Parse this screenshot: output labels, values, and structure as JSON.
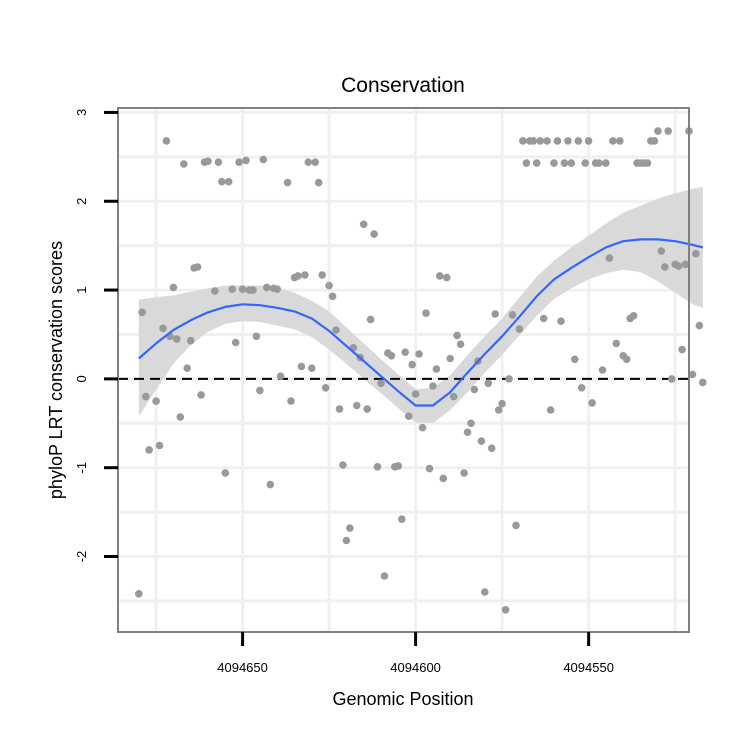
{
  "chart_data": {
    "type": "scatter",
    "title": "Conservation",
    "xlabel": "Genomic Position",
    "ylabel": "phyloP LRT conservation scores",
    "x_reversed": true,
    "xlim": [
      4094686,
      4094521
    ],
    "ylim": [
      -2.85,
      3.05
    ],
    "x_ticks": [
      4094650,
      4094600,
      4094550
    ],
    "x_tick_labels": [
      "4094650",
      "4094600",
      "4094550"
    ],
    "y_ticks": [
      -2,
      -1,
      0,
      1,
      2,
      3
    ],
    "y_tick_labels": [
      "-2",
      "-1",
      "0",
      "1",
      "2",
      "3"
    ],
    "grid": true,
    "legend": "none",
    "reference_line": {
      "y": 0,
      "style": "dashed"
    },
    "colors": {
      "points": "#999999",
      "smooth": "#3366ff",
      "ribbon": "#d9d9d9",
      "grid": "#f0f0f0",
      "frame": "#808080",
      "reference": "#000000"
    },
    "points": [
      [
        4094680,
        -2.42
      ],
      [
        4094679,
        0.75
      ],
      [
        4094678,
        -0.2
      ],
      [
        4094677,
        -0.8
      ],
      [
        4094675,
        -0.25
      ],
      [
        4094674,
        -0.75
      ],
      [
        4094673,
        0.57
      ],
      [
        4094672,
        2.68
      ],
      [
        4094671,
        0.48
      ],
      [
        4094670,
        1.03
      ],
      [
        4094669,
        0.45
      ],
      [
        4094668,
        -0.43
      ],
      [
        4094667,
        2.42
      ],
      [
        4094666,
        0.12
      ],
      [
        4094665,
        0.43
      ],
      [
        4094664,
        1.25
      ],
      [
        4094663,
        1.26
      ],
      [
        4094662,
        -0.18
      ],
      [
        4094661,
        2.44
      ],
      [
        4094660,
        2.45
      ],
      [
        4094658,
        0.99
      ],
      [
        4094657,
        2.44
      ],
      [
        4094656,
        2.22
      ],
      [
        4094655,
        -1.06
      ],
      [
        4094654,
        2.22
      ],
      [
        4094653,
        1.01
      ],
      [
        4094652,
        0.41
      ],
      [
        4094651,
        2.44
      ],
      [
        4094650,
        1.01
      ],
      [
        4094649,
        2.46
      ],
      [
        4094648,
        1.0
      ],
      [
        4094647,
        1.0
      ],
      [
        4094646,
        0.48
      ],
      [
        4094645,
        -0.13
      ],
      [
        4094644,
        2.47
      ],
      [
        4094643,
        1.03
      ],
      [
        4094642,
        -1.19
      ],
      [
        4094641,
        1.02
      ],
      [
        4094640,
        1.01
      ],
      [
        4094639,
        0.03
      ],
      [
        4094637,
        2.21
      ],
      [
        4094636,
        -0.25
      ],
      [
        4094635,
        1.14
      ],
      [
        4094634,
        1.16
      ],
      [
        4094633,
        0.14
      ],
      [
        4094632,
        1.17
      ],
      [
        4094631,
        2.44
      ],
      [
        4094630,
        0.12
      ],
      [
        4094629,
        2.44
      ],
      [
        4094628,
        2.21
      ],
      [
        4094627,
        1.17
      ],
      [
        4094626,
        -0.1
      ],
      [
        4094625,
        1.05
      ],
      [
        4094624,
        0.93
      ],
      [
        4094623,
        0.55
      ],
      [
        4094622,
        -0.34
      ],
      [
        4094621,
        -0.97
      ],
      [
        4094620,
        -1.82
      ],
      [
        4094619,
        -1.68
      ],
      [
        4094618,
        0.35
      ],
      [
        4094617,
        -0.3
      ],
      [
        4094616,
        0.24
      ],
      [
        4094615,
        1.74
      ],
      [
        4094614,
        -0.34
      ],
      [
        4094613,
        0.67
      ],
      [
        4094612,
        1.63
      ],
      [
        4094611,
        -0.99
      ],
      [
        4094610,
        -0.05
      ],
      [
        4094609,
        -2.22
      ],
      [
        4094608,
        0.29
      ],
      [
        4094607,
        0.26
      ],
      [
        4094606,
        -0.99
      ],
      [
        4094605,
        -0.98
      ],
      [
        4094604,
        -1.58
      ],
      [
        4094603,
        0.3
      ],
      [
        4094602,
        -0.42
      ],
      [
        4094601,
        0.16
      ],
      [
        4094600,
        -0.17
      ],
      [
        4094599,
        0.28
      ],
      [
        4094598,
        -0.55
      ],
      [
        4094597,
        0.74
      ],
      [
        4094596,
        -1.01
      ],
      [
        4094595,
        -0.08
      ],
      [
        4094594,
        0.11
      ],
      [
        4094593,
        1.16
      ],
      [
        4094592,
        -1.12
      ],
      [
        4094591,
        1.14
      ],
      [
        4094590,
        0.23
      ],
      [
        4094589,
        -0.2
      ],
      [
        4094588,
        0.49
      ],
      [
        4094587,
        0.39
      ],
      [
        4094586,
        -1.06
      ],
      [
        4094585,
        -0.6
      ],
      [
        4094584,
        -0.5
      ],
      [
        4094583,
        -0.12
      ],
      [
        4094582,
        0.2
      ],
      [
        4094581,
        -0.7
      ],
      [
        4094580,
        -2.4
      ],
      [
        4094579,
        -0.05
      ],
      [
        4094578,
        -0.78
      ],
      [
        4094577,
        0.73
      ],
      [
        4094576,
        -0.35
      ],
      [
        4094575,
        -0.28
      ],
      [
        4094574,
        -2.6
      ],
      [
        4094573,
        0.0
      ],
      [
        4094572,
        0.72
      ],
      [
        4094571,
        -1.65
      ],
      [
        4094570,
        0.56
      ],
      [
        4094569,
        2.68
      ],
      [
        4094568,
        2.43
      ],
      [
        4094567,
        2.68
      ],
      [
        4094566,
        2.68
      ],
      [
        4094565,
        2.43
      ],
      [
        4094564,
        2.68
      ],
      [
        4094563,
        0.68
      ],
      [
        4094562,
        2.68
      ],
      [
        4094561,
        -0.35
      ],
      [
        4094560,
        2.43
      ],
      [
        4094559,
        2.68
      ],
      [
        4094558,
        0.65
      ],
      [
        4094557,
        2.43
      ],
      [
        4094556,
        2.68
      ],
      [
        4094555,
        2.43
      ],
      [
        4094554,
        0.22
      ],
      [
        4094553,
        2.68
      ],
      [
        4094552,
        -0.1
      ],
      [
        4094551,
        2.43
      ],
      [
        4094550,
        2.68
      ],
      [
        4094549,
        -0.27
      ],
      [
        4094548,
        2.43
      ],
      [
        4094547,
        2.43
      ],
      [
        4094546,
        0.1
      ],
      [
        4094545,
        2.43
      ],
      [
        4094544,
        1.36
      ],
      [
        4094543,
        2.68
      ],
      [
        4094542,
        0.4
      ],
      [
        4094541,
        2.68
      ],
      [
        4094540,
        0.26
      ],
      [
        4094539,
        0.22
      ],
      [
        4094538,
        0.68
      ],
      [
        4094537,
        0.71
      ],
      [
        4094536,
        2.43
      ],
      [
        4094535,
        2.43
      ],
      [
        4094534,
        2.43
      ],
      [
        4094533,
        2.43
      ],
      [
        4094532,
        2.68
      ],
      [
        4094531,
        2.68
      ],
      [
        4094530,
        2.79
      ],
      [
        4094529,
        1.44
      ],
      [
        4094528,
        1.26
      ],
      [
        4094527,
        2.79
      ],
      [
        4094526,
        0.0
      ],
      [
        4094525,
        1.29
      ],
      [
        4094524,
        1.27
      ],
      [
        4094523,
        0.33
      ],
      [
        4094522,
        1.29
      ],
      [
        4094521,
        2.79
      ],
      [
        4094520,
        0.05
      ],
      [
        4094519,
        1.41
      ],
      [
        4094518,
        0.6
      ],
      [
        4094517,
        -0.04
      ]
    ],
    "smooth": {
      "x": [
        4094680,
        4094675,
        4094670,
        4094665,
        4094660,
        4094655,
        4094650,
        4094645,
        4094640,
        4094635,
        4094630,
        4094625,
        4094620,
        4094615,
        4094610,
        4094605,
        4094600,
        4094595,
        4094590,
        4094585,
        4094580,
        4094575,
        4094570,
        4094565,
        4094560,
        4094555,
        4094550,
        4094545,
        4094540,
        4094535,
        4094530,
        4094525,
        4094520,
        4094517
      ],
      "y": [
        0.23,
        0.4,
        0.55,
        0.66,
        0.75,
        0.81,
        0.84,
        0.83,
        0.8,
        0.76,
        0.68,
        0.54,
        0.37,
        0.2,
        0.03,
        -0.14,
        -0.3,
        -0.3,
        -0.15,
        0.07,
        0.28,
        0.48,
        0.7,
        0.93,
        1.12,
        1.25,
        1.37,
        1.48,
        1.55,
        1.57,
        1.57,
        1.55,
        1.51,
        1.48
      ],
      "lower": [
        -0.42,
        -0.12,
        0.17,
        0.38,
        0.53,
        0.62,
        0.65,
        0.64,
        0.6,
        0.56,
        0.47,
        0.33,
        0.17,
        0.0,
        -0.16,
        -0.33,
        -0.49,
        -0.5,
        -0.35,
        -0.15,
        0.07,
        0.27,
        0.49,
        0.71,
        0.9,
        1.02,
        1.12,
        1.19,
        1.23,
        1.2,
        1.1,
        0.97,
        0.84,
        0.8
      ],
      "upper": [
        0.89,
        0.92,
        0.94,
        0.98,
        1.02,
        1.05,
        1.05,
        1.05,
        1.03,
        0.97,
        0.88,
        0.76,
        0.58,
        0.4,
        0.22,
        0.05,
        -0.12,
        -0.1,
        0.04,
        0.27,
        0.48,
        0.68,
        0.92,
        1.15,
        1.33,
        1.48,
        1.61,
        1.75,
        1.87,
        1.95,
        2.03,
        2.09,
        2.14,
        2.16
      ]
    }
  }
}
